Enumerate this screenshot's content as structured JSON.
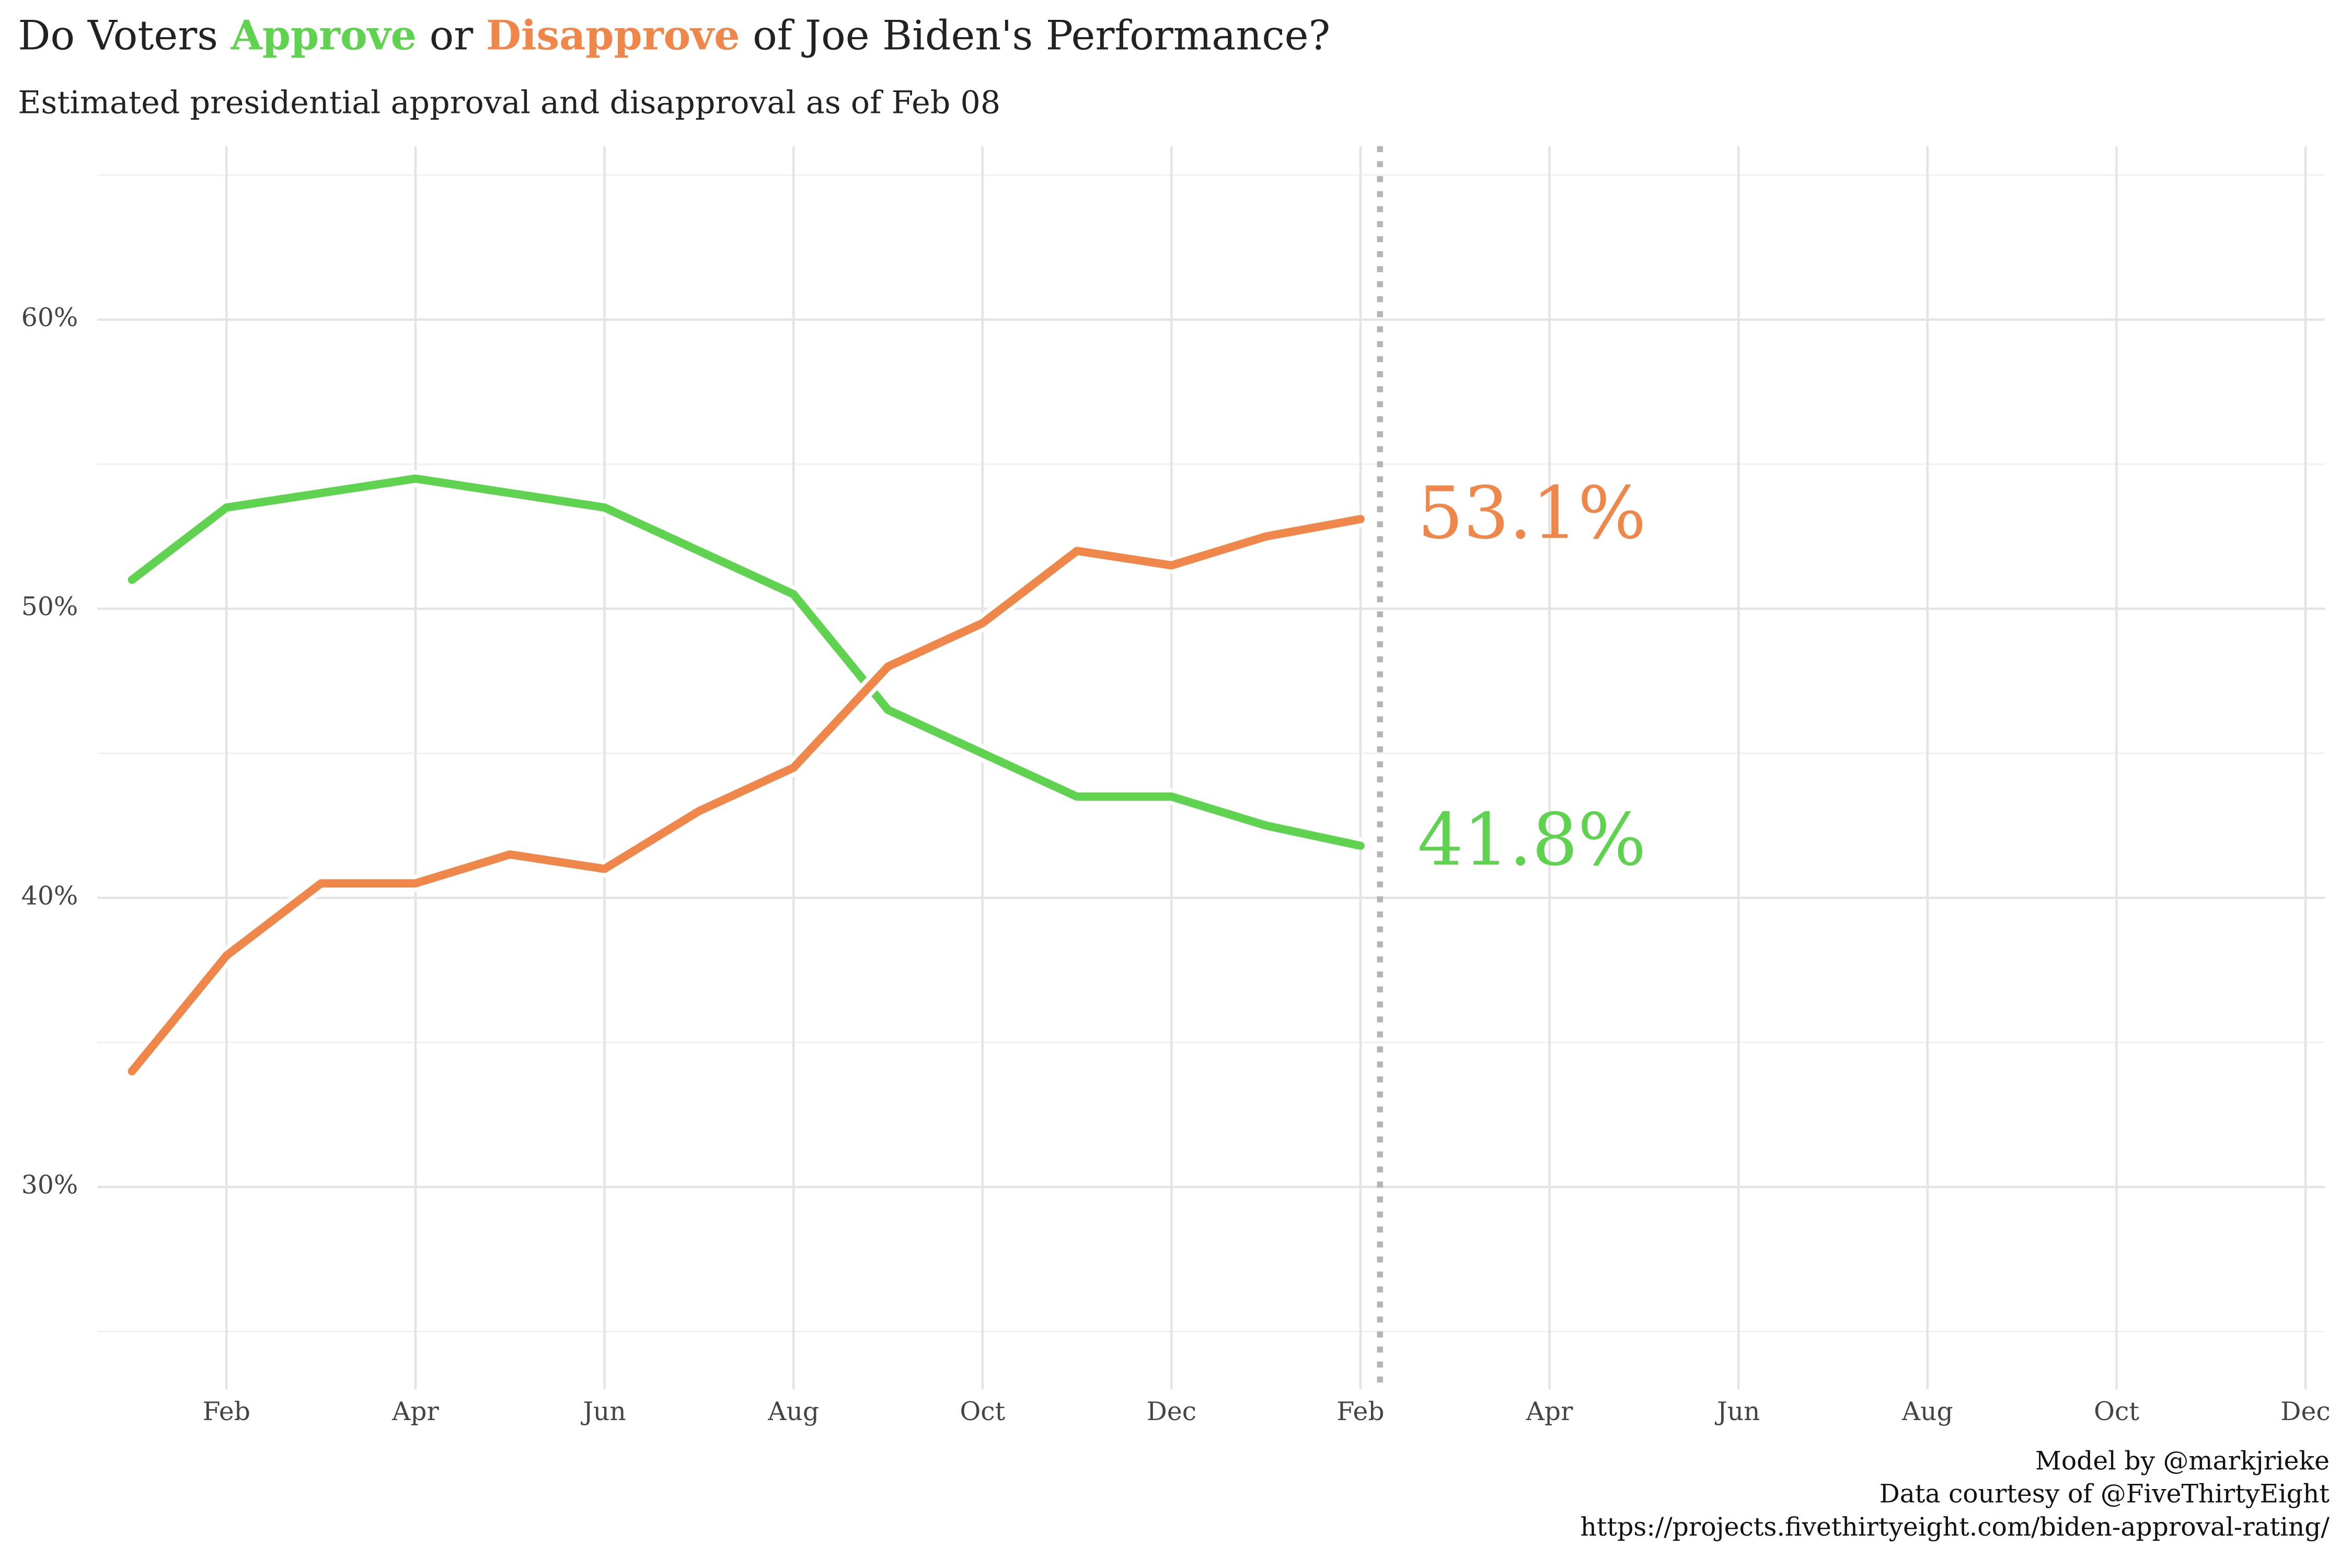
{
  "chart_data": {
    "type": "line",
    "title": [
      "Do Voters ",
      "Approve",
      " or ",
      "Disapprove",
      " of Joe Biden's Performance?"
    ],
    "subtitle": "Estimated presidential approval and disapproval as of Feb 08",
    "caption": [
      "Model by @markjrieke",
      "Data courtesy of @FiveThirtyEight",
      "https://projects.fivethirtyeight.com/biden-approval-rating/"
    ],
    "categories": [
      null,
      "Feb",
      null,
      "Apr",
      null,
      "Jun",
      null,
      "Aug",
      null,
      "Oct",
      null,
      "Dec",
      null,
      "Feb",
      null,
      "Apr",
      null,
      "Jun",
      null,
      "Aug",
      null,
      "Oct",
      null,
      "Dec"
    ],
    "series": [
      {
        "name": "Approve",
        "color": "#5fd350",
        "values": [
          51,
          53.5,
          54,
          54.5,
          54,
          53.5,
          52,
          50.5,
          46.5,
          45,
          43.5,
          43.5,
          42.5,
          41.8,
          null,
          null,
          null,
          null,
          null,
          null,
          null,
          null,
          null,
          null
        ],
        "value_labels": [
          null,
          null,
          null,
          null,
          null,
          null,
          null,
          null,
          null,
          null,
          null,
          null,
          null,
          "41.8%",
          null,
          null,
          null,
          null,
          null,
          null,
          null,
          null,
          null,
          null
        ]
      },
      {
        "name": "Disapprove",
        "color": "#f0874a",
        "values": [
          34,
          38,
          40.5,
          40.5,
          41.5,
          41,
          43,
          44.5,
          48,
          49.5,
          52,
          51.5,
          52.5,
          53.1,
          null,
          null,
          null,
          null,
          null,
          null,
          null,
          null,
          null,
          null
        ],
        "value_labels": [
          null,
          null,
          null,
          null,
          null,
          null,
          null,
          null,
          null,
          null,
          null,
          null,
          null,
          "53.1%",
          null,
          null,
          null,
          null,
          null,
          null,
          null,
          null,
          null,
          null
        ]
      }
    ],
    "ylim": [
      23,
      66
    ],
    "yticks": [
      {
        "value": 30,
        "label": "30%"
      },
      {
        "value": 40,
        "label": "40%"
      },
      {
        "value": 50,
        "label": "50%"
      },
      {
        "value": 60,
        "label": "60%"
      }
    ],
    "y_minor_ticks": [
      25,
      35,
      45,
      55,
      65
    ],
    "grid": true
  }
}
